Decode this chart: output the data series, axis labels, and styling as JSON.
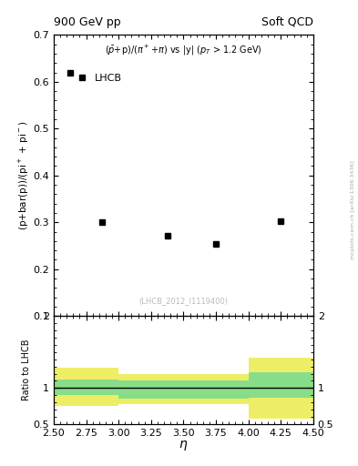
{
  "title_left": "900 GeV pp",
  "title_right": "Soft QCD",
  "plot_title": "($\\bar{p}$+p)/($\\pi^+$+$\\pi$) vs |y| ($p_T$ > 1.2 GeV)",
  "xlabel": "$\\eta$",
  "ylabel_main": "(p+bar(p))/(pi$^+$ + pi$^-$)",
  "ylabel_ratio": "Ratio to LHCB",
  "watermark": "(LHCB_2012_I1119400)",
  "legend_label": "LHCB",
  "data_x": [
    2.625,
    2.875,
    3.375,
    3.75,
    4.25
  ],
  "data_y": [
    0.62,
    0.301,
    0.272,
    0.254,
    0.302
  ],
  "xlim": [
    2.5,
    4.5
  ],
  "ylim_main": [
    0.1,
    0.7
  ],
  "ylim_ratio": [
    0.5,
    2.0
  ],
  "ratio_band_x": [
    2.5,
    3.0,
    3.0,
    4.0,
    4.0,
    4.5
  ],
  "green_upper": [
    1.12,
    1.12,
    1.1,
    1.1,
    1.22,
    1.22
  ],
  "green_lower": [
    0.9,
    0.9,
    0.85,
    0.85,
    0.86,
    0.86
  ],
  "yellow_upper": [
    1.28,
    1.28,
    1.2,
    1.2,
    1.42,
    1.42
  ],
  "yellow_lower": [
    0.75,
    0.75,
    0.78,
    0.78,
    0.58,
    0.58
  ],
  "ratio_line": 1.0,
  "marker_color": "black",
  "marker_style": "s",
  "marker_size": 4,
  "green_color": "#88dd88",
  "yellow_color": "#eeee66",
  "right_label": "mcplots.cern.ch [arXiv:1306.3436]",
  "watermark_color": "#bbbbbb"
}
